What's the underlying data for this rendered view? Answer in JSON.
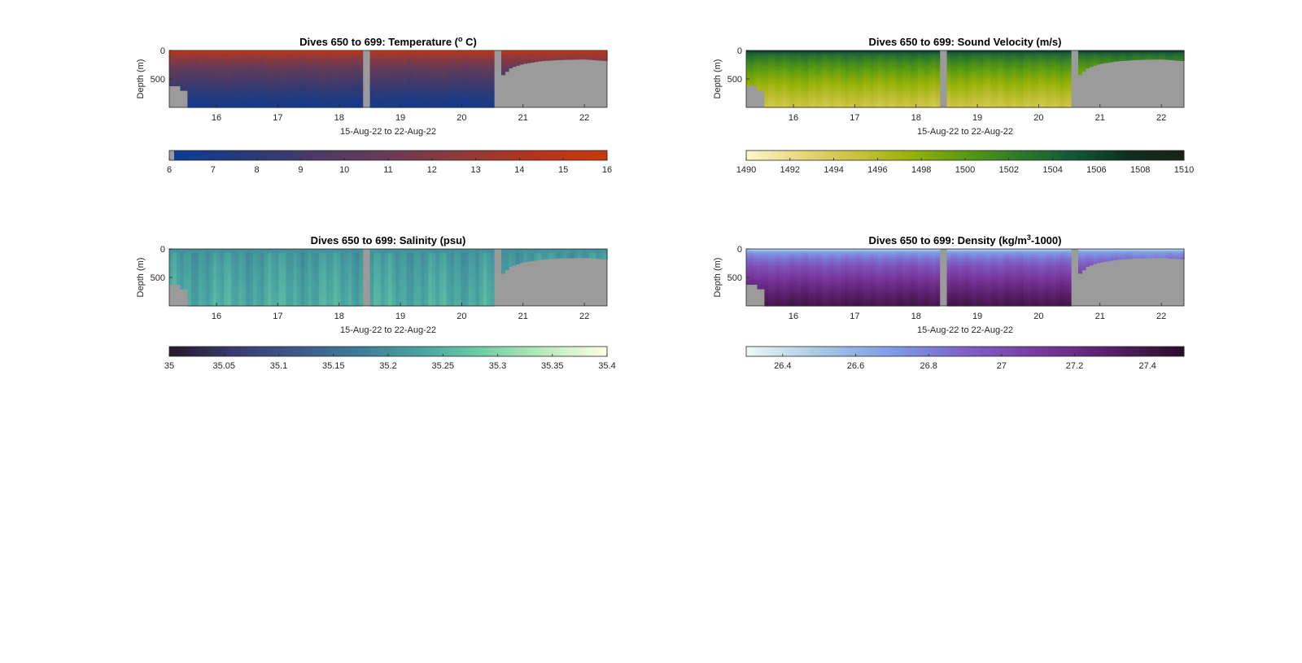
{
  "chart_data": [
    {
      "type": "heatmap",
      "title": "Dives 650 to 699: Temperature (",
      "title_sup": "o",
      "title_end": " C)",
      "xlabel": "15-Aug-22 to 22-Aug-22",
      "ylabel": "Depth (m)",
      "xticks": [
        "16",
        "17",
        "18",
        "19",
        "20",
        "21",
        "22"
      ],
      "yticks": [
        "0",
        "500"
      ],
      "xlim": [
        15.23,
        22.37
      ],
      "ylim": [
        1000,
        0
      ],
      "colorbar": {
        "ticks": [
          "6",
          "7",
          "8",
          "9",
          "10",
          "11",
          "12",
          "13",
          "14",
          "15",
          "16"
        ],
        "range": [
          6,
          16
        ],
        "colors": [
          "#0b3b96",
          "#273a7a",
          "#4a3a66",
          "#6a3a55",
          "#8f3a3a",
          "#b4331f",
          "#c83a0b"
        ]
      },
      "surface_value": 15.5,
      "deep_value": 6.5,
      "valid_until": 20.52,
      "gaps": [
        [
          18.36,
          18.51
        ]
      ],
      "bottom_depth": [
        [
          15.23,
          620
        ],
        [
          15.39,
          700
        ],
        [
          15.52,
          1000
        ],
        [
          20.0,
          1000
        ],
        [
          20.52,
          1000
        ],
        [
          20.66,
          1000
        ]
      ],
      "late_profile_depth": [
        [
          20.66,
          440
        ],
        [
          20.8,
          300
        ],
        [
          21.0,
          230
        ],
        [
          21.3,
          180
        ],
        [
          21.6,
          160
        ],
        [
          22.0,
          150
        ],
        [
          22.37,
          180
        ]
      ]
    },
    {
      "type": "heatmap",
      "title": "Dives 650 to 699: Sound Velocity (m/s)",
      "xlabel": "15-Aug-22 to 22-Aug-22",
      "ylabel": "Depth (m)",
      "xticks": [
        "16",
        "17",
        "18",
        "19",
        "20",
        "21",
        "22"
      ],
      "yticks": [
        "0",
        "500"
      ],
      "xlim": [
        15.23,
        22.37
      ],
      "ylim": [
        1000,
        0
      ],
      "colorbar": {
        "ticks": [
          "1490",
          "1492",
          "1494",
          "1496",
          "1498",
          "1500",
          "1502",
          "1504",
          "1506",
          "1508",
          "1510"
        ],
        "range": [
          1490,
          1510
        ],
        "colors": [
          "#fdf6c8",
          "#e7d67a",
          "#c8c23e",
          "#98b20a",
          "#5a9a10",
          "#2f7a2a",
          "#14563a",
          "#0e2f22",
          "#1c2118"
        ]
      },
      "surface_value": 1506.5,
      "deep_value": 1494.5,
      "valid_until": 20.52,
      "gaps": [
        [
          18.36,
          18.51
        ]
      ],
      "bottom_depth": [
        [
          15.23,
          620
        ],
        [
          15.39,
          700
        ],
        [
          15.52,
          1000
        ],
        [
          20.0,
          1000
        ],
        [
          20.52,
          1000
        ],
        [
          20.66,
          1000
        ]
      ],
      "late_profile_depth": [
        [
          20.66,
          440
        ],
        [
          20.8,
          300
        ],
        [
          21.0,
          230
        ],
        [
          21.3,
          180
        ],
        [
          21.6,
          160
        ],
        [
          22.0,
          150
        ],
        [
          22.37,
          180
        ]
      ]
    },
    {
      "type": "heatmap",
      "title": "Dives 650 to 699: Salinity (psu)",
      "xlabel": "15-Aug-22 to 22-Aug-22",
      "ylabel": "Depth (m)",
      "xticks": [
        "16",
        "17",
        "18",
        "19",
        "20",
        "21",
        "22"
      ],
      "yticks": [
        "0",
        "500"
      ],
      "xlim": [
        15.23,
        22.37
      ],
      "ylim": [
        1000,
        0
      ],
      "colorbar": {
        "ticks": [
          "35",
          "35.05",
          "35.1",
          "35.15",
          "35.2",
          "35.25",
          "35.3",
          "35.35",
          "35.4"
        ],
        "range": [
          35,
          35.4
        ],
        "colors": [
          "#251a2e",
          "#3b3a6e",
          "#3d5a8a",
          "#3d7a96",
          "#48a3a0",
          "#6fcda6",
          "#b9eab9",
          "#fdfde6"
        ]
      },
      "surface_value": 35.2,
      "deep_value": 35.24,
      "valid_until": 20.52,
      "gaps": [
        [
          18.36,
          18.51
        ]
      ],
      "bottom_depth": [
        [
          15.23,
          620
        ],
        [
          15.39,
          700
        ],
        [
          15.52,
          1000
        ],
        [
          20.0,
          1000
        ],
        [
          20.52,
          1000
        ],
        [
          20.66,
          1000
        ]
      ],
      "late_profile_depth": [
        [
          20.66,
          440
        ],
        [
          20.8,
          300
        ],
        [
          21.0,
          230
        ],
        [
          21.3,
          180
        ],
        [
          21.6,
          160
        ],
        [
          22.0,
          150
        ],
        [
          22.37,
          180
        ]
      ]
    },
    {
      "type": "heatmap",
      "title": "Dives 650 to 699: Density (kg/m",
      "title_sup": "3",
      "title_end": "-1000)",
      "xlabel": "15-Aug-22 to 22-Aug-22",
      "ylabel": "Depth (m)",
      "xticks": [
        "16",
        "17",
        "18",
        "19",
        "20",
        "21",
        "22"
      ],
      "yticks": [
        "0",
        "500"
      ],
      "xlim": [
        15.23,
        22.37
      ],
      "ylim": [
        1000,
        0
      ],
      "colorbar": {
        "ticks": [
          "26.4",
          "26.6",
          "26.8",
          "27",
          "27.2",
          "27.4"
        ],
        "range": [
          26.3,
          27.5
        ],
        "colors": [
          "#eef6f6",
          "#a5c8e4",
          "#7e9ce6",
          "#7e62c8",
          "#7a3aa0",
          "#5a1f6a",
          "#2a0e2a"
        ]
      },
      "surface_value": 26.5,
      "deep_value": 27.4,
      "valid_until": 20.52,
      "gaps": [
        [
          18.36,
          18.51
        ]
      ],
      "bottom_depth": [
        [
          15.23,
          620
        ],
        [
          15.39,
          700
        ],
        [
          15.52,
          1000
        ],
        [
          20.0,
          1000
        ],
        [
          20.52,
          1000
        ],
        [
          20.66,
          1000
        ]
      ],
      "late_profile_depth": [
        [
          20.66,
          440
        ],
        [
          20.8,
          300
        ],
        [
          21.0,
          230
        ],
        [
          21.3,
          180
        ],
        [
          21.6,
          160
        ],
        [
          22.0,
          150
        ],
        [
          22.37,
          180
        ]
      ]
    }
  ],
  "colors": {
    "no_data": "#9b9b9b",
    "axis": "#262626"
  }
}
